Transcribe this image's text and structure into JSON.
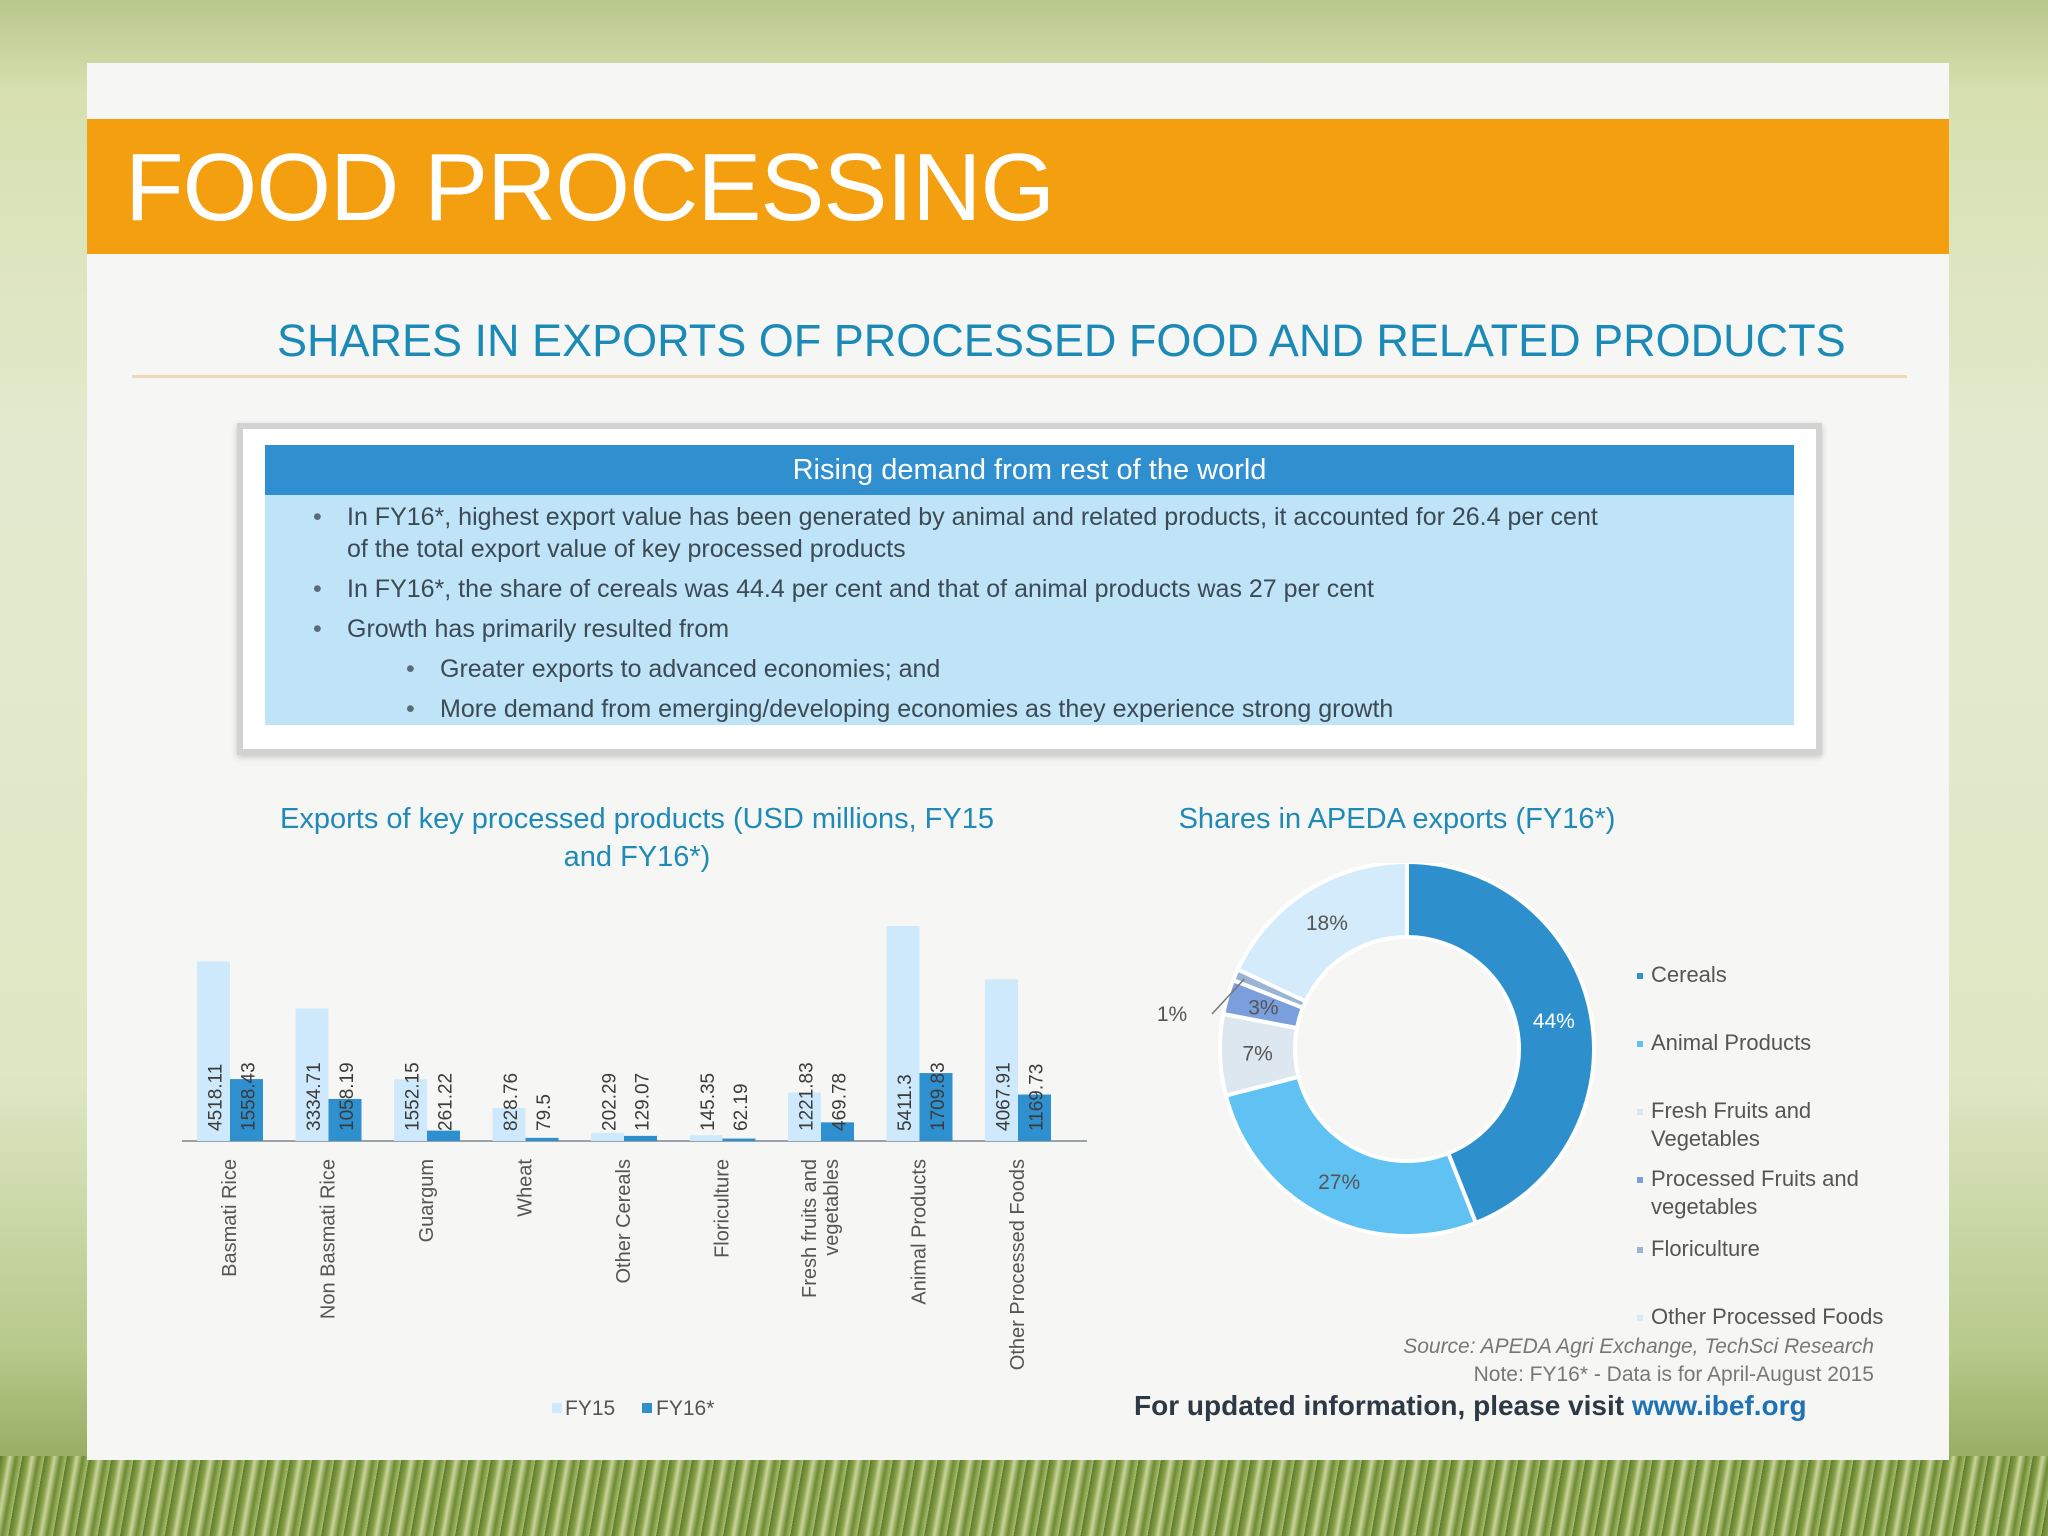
{
  "slide": {
    "title": "FOOD PROCESSING",
    "subtitle": "SHARES IN EXPORTS OF PROCESSED FOOD AND RELATED PRODUCTS"
  },
  "info_box": {
    "header": "Rising demand from rest of the world",
    "bullets": [
      "In FY16*, highest export value has been generated by animal and related products, it accounted for 26.4 per cent",
      "of the total export value of key processed products",
      "In FY16*, the share of cereals was 44.4 per cent and that of animal products was 27 per cent",
      "Growth has primarily resulted from",
      "Greater exports to advanced economies; and",
      "More demand from emerging/developing economies as they experience strong growth"
    ]
  },
  "footer": {
    "source": "Source: APEDA Agri Exchange, TechSci Research",
    "note": "Note: FY16* - Data is for April-August 2015",
    "visit_text": "For updated information, please visit",
    "visit_url": "www.ibef.org"
  },
  "colors": {
    "title_bar": "#f49f10",
    "fy15": "#cde9fb",
    "fy16": "#2e90cf",
    "accent_text": "#1f8ab5"
  },
  "chart_data": [
    {
      "type": "bar",
      "title_line1": "Exports of key processed products (USD millions, FY15",
      "title_line2": "and FY16*)",
      "categories": [
        "Basmati Rice",
        "Non Basmati Rice",
        "Guargum",
        "Wheat",
        "Other Cereals",
        "Floriculture",
        "Fresh fruits and vegetables",
        "Animal Products",
        "Other Processed Foods"
      ],
      "series": [
        {
          "name": "FY15",
          "color": "#cde9fb",
          "values": [
            4518.11,
            3334.71,
            1552.15,
            828.76,
            202.29,
            145.35,
            1221.83,
            5411.3,
            4067.91
          ],
          "labels": [
            "4518.11",
            "3334.71",
            "1552.15",
            "828.76",
            "202.29",
            "145.35",
            "1221.83",
            "5411.3",
            "4067.91"
          ]
        },
        {
          "name": "FY16*",
          "color": "#2e90cf",
          "values": [
            1558.43,
            1058.19,
            261.22,
            79.5,
            129.07,
            62.19,
            469.78,
            1709.83,
            1169.73
          ],
          "labels": [
            "1558.43",
            "1058.19",
            "261.22",
            "79.5",
            "129.07",
            "62.19",
            "469.78",
            "1709.83",
            "1169.73"
          ]
        }
      ],
      "legend": [
        "FY15",
        "FY16*"
      ],
      "legend_position": "bottom"
    },
    {
      "type": "pie",
      "title": "Shares in APEDA exports (FY16*)",
      "donut": true,
      "slices": [
        {
          "name": "Cereals",
          "value": 44,
          "label": "44%",
          "color": "#2e8fcd"
        },
        {
          "name": "Animal Products",
          "value": 27,
          "label": "27%",
          "color": "#60c1f3"
        },
        {
          "name": "Fresh Fruits and Vegetables",
          "value": 7,
          "label": "7%",
          "color": "#dde7f0"
        },
        {
          "name": "Processed Fruits and vegetables",
          "value": 3,
          "label": "3%",
          "color": "#7a9fdc"
        },
        {
          "name": "Floriculture",
          "value": 1,
          "label": "1%",
          "color": "#9ab4d6"
        },
        {
          "name": "Other Processed Foods",
          "value": 18,
          "label": "18%",
          "color": "#d3ebfa"
        }
      ],
      "legend": [
        "Cereals",
        "Animal Products",
        "Fresh Fruits and Vegetables",
        "Processed Fruits and vegetables",
        "Floriculture",
        "Other Processed Foods"
      ],
      "legend_position": "right"
    }
  ]
}
